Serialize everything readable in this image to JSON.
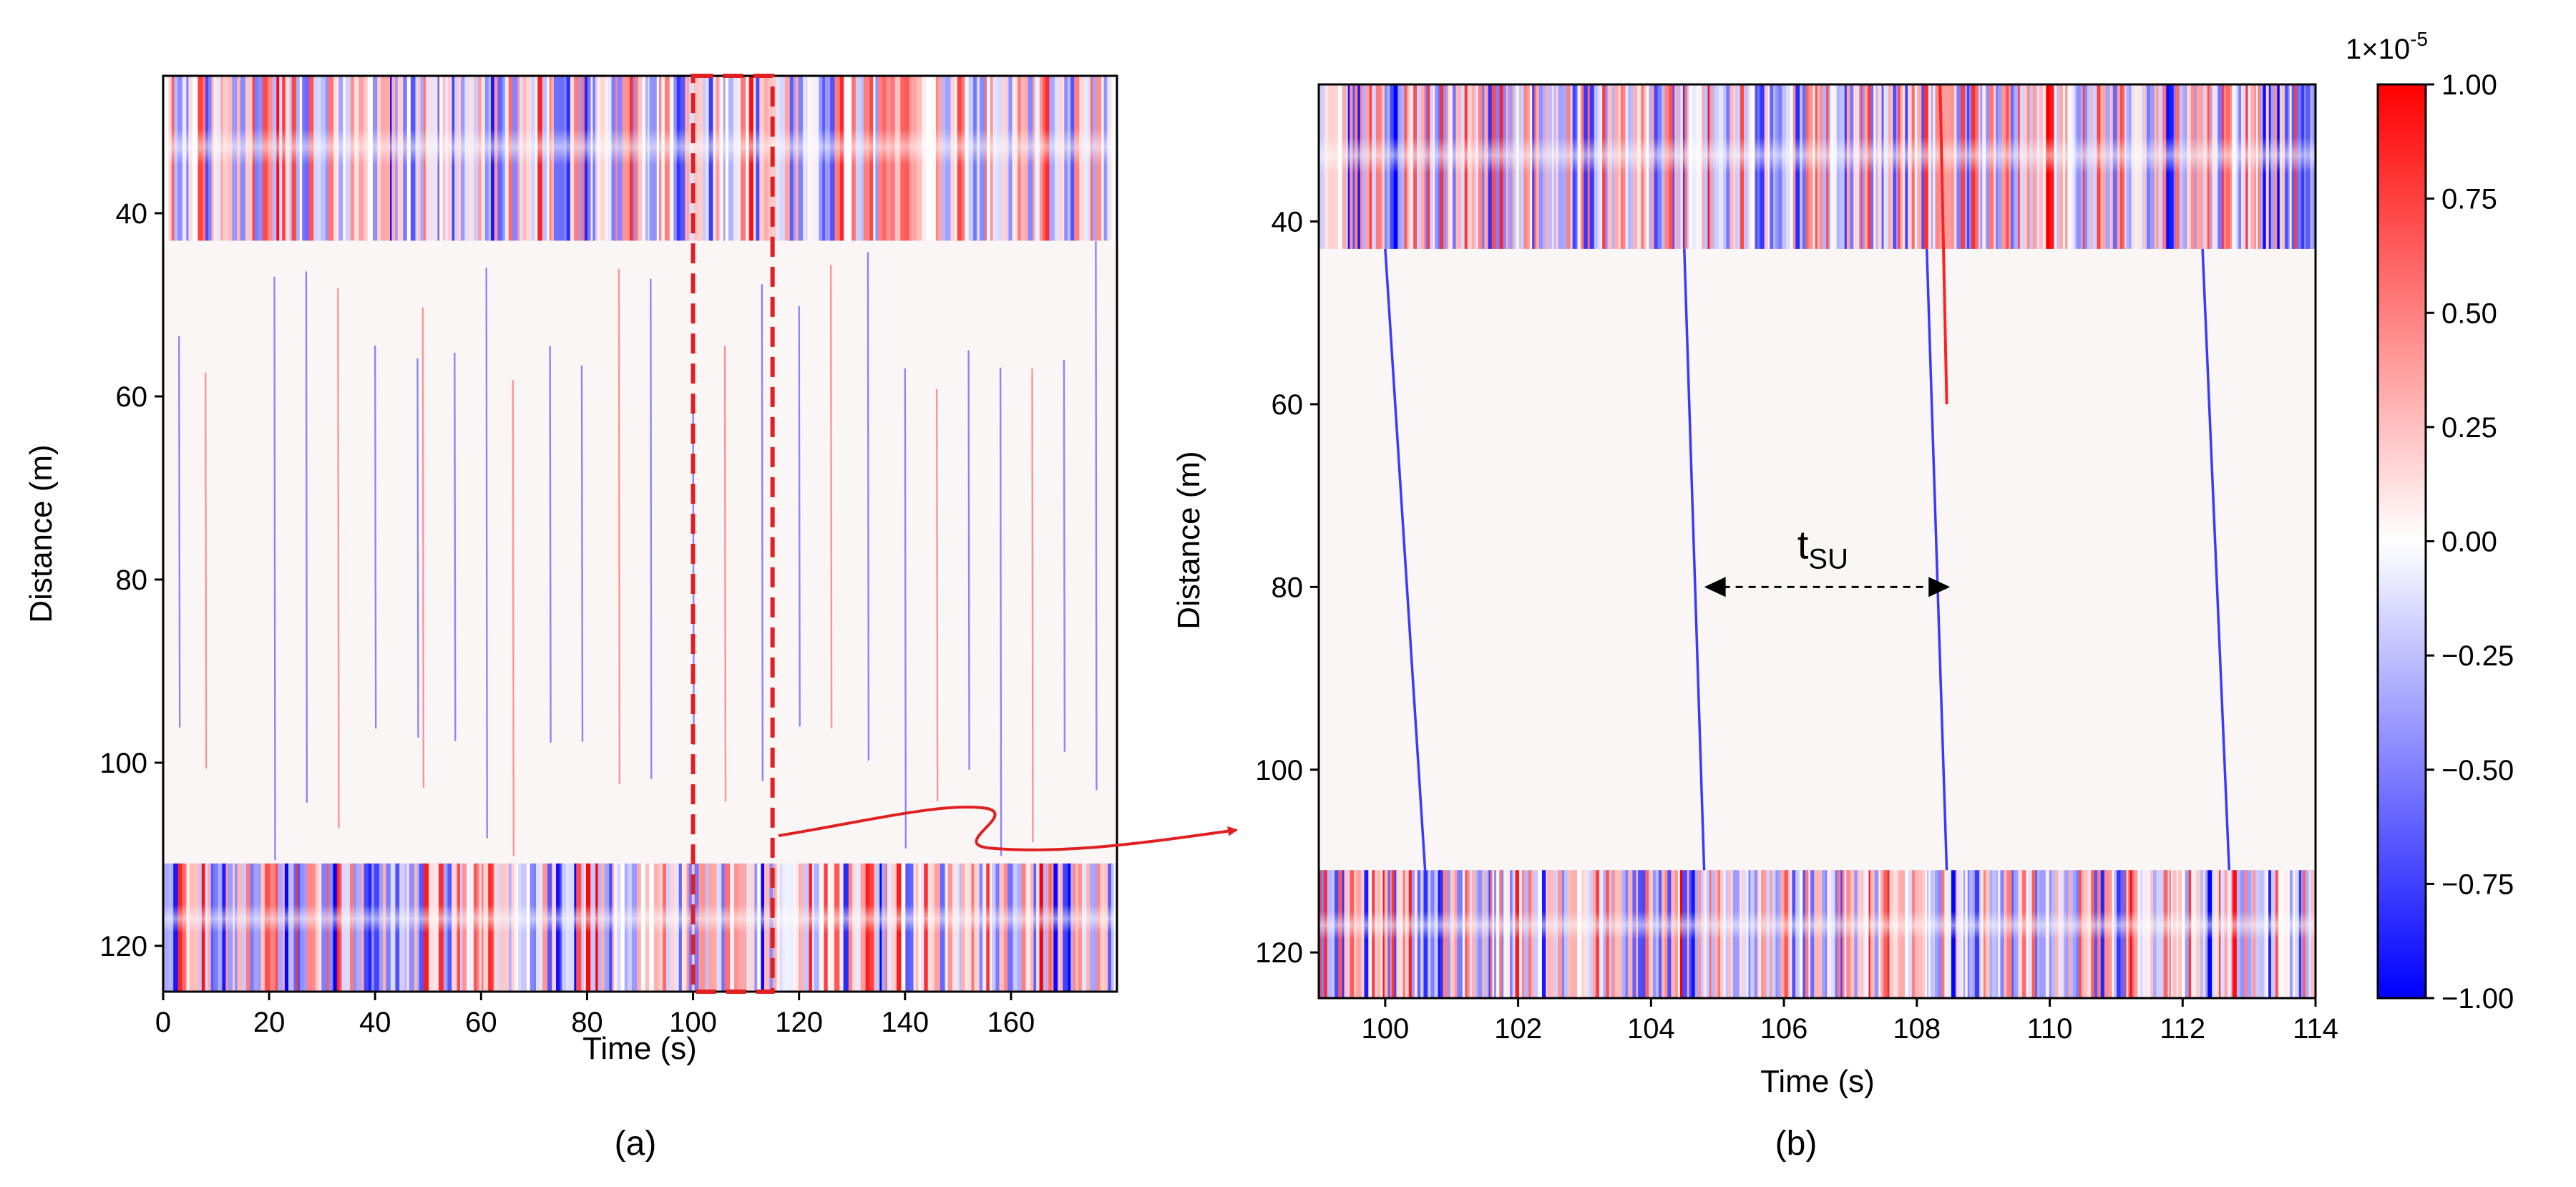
{
  "colors": {
    "positive": "#ff0000",
    "neutral": "#ffffff",
    "negative": "#0000ff",
    "highlight": "#e02020",
    "axis": "#000000"
  },
  "colorbar": {
    "exponent_label": "1×10",
    "exponent_power": "-5",
    "range": [
      -1.0,
      1.0
    ],
    "ticks": [
      "1.00",
      "0.75",
      "0.50",
      "0.25",
      "0.00",
      "−0.25",
      "−0.50",
      "−0.75",
      "−1.00"
    ]
  },
  "chart_data": [
    {
      "id": "a",
      "type": "heatmap",
      "panel_label": "(a)",
      "xlabel": "Time (s)",
      "ylabel": "Distance (m)",
      "xlim": [
        0,
        180
      ],
      "ylim": [
        125,
        25
      ],
      "x_ticks": [
        "0",
        "20",
        "40",
        "60",
        "80",
        "100",
        "120",
        "140",
        "160"
      ],
      "y_ticks": [
        "40",
        "60",
        "80",
        "100",
        "120"
      ],
      "strong_bands_m": [
        [
          25,
          43
        ],
        [
          111,
          125
        ]
      ],
      "highlight_box": {
        "x_from": 100,
        "x_to": 115,
        "y_from": 25,
        "y_to": 125
      },
      "vertical_events_s": [
        3,
        8,
        21,
        27,
        33,
        40,
        48,
        49,
        55,
        61,
        66,
        73,
        79,
        86,
        92,
        100,
        106,
        113,
        120,
        126,
        133,
        140,
        146,
        152,
        158,
        164,
        170,
        176
      ]
    },
    {
      "id": "b",
      "type": "heatmap",
      "panel_label": "(b)",
      "xlabel": "Time (s)",
      "ylabel": "Distance (m)",
      "xlim": [
        99,
        114
      ],
      "ylim": [
        125,
        25
      ],
      "x_ticks": [
        "100",
        "102",
        "104",
        "106",
        "108",
        "110",
        "112",
        "114"
      ],
      "y_ticks": [
        "40",
        "60",
        "80",
        "100",
        "120"
      ],
      "strong_bands_m": [
        [
          25,
          43
        ],
        [
          111,
          125
        ]
      ],
      "slanted_events": [
        {
          "sign": "negative",
          "t_top": 100.0,
          "t_bottom": 100.6
        },
        {
          "sign": "negative",
          "t_top": 104.5,
          "t_bottom": 104.8
        },
        {
          "sign": "positive",
          "t_top": 108.35,
          "t_bottom": 108.45
        },
        {
          "sign": "negative",
          "t_top": 108.15,
          "t_bottom": 108.45
        },
        {
          "sign": "negative",
          "t_top": 112.3,
          "t_bottom": 112.7
        }
      ],
      "annotation": {
        "label_main": "t",
        "label_sub": "SU",
        "from_s": 104.8,
        "to_s": 108.5,
        "at_distance_m": 80
      }
    }
  ]
}
